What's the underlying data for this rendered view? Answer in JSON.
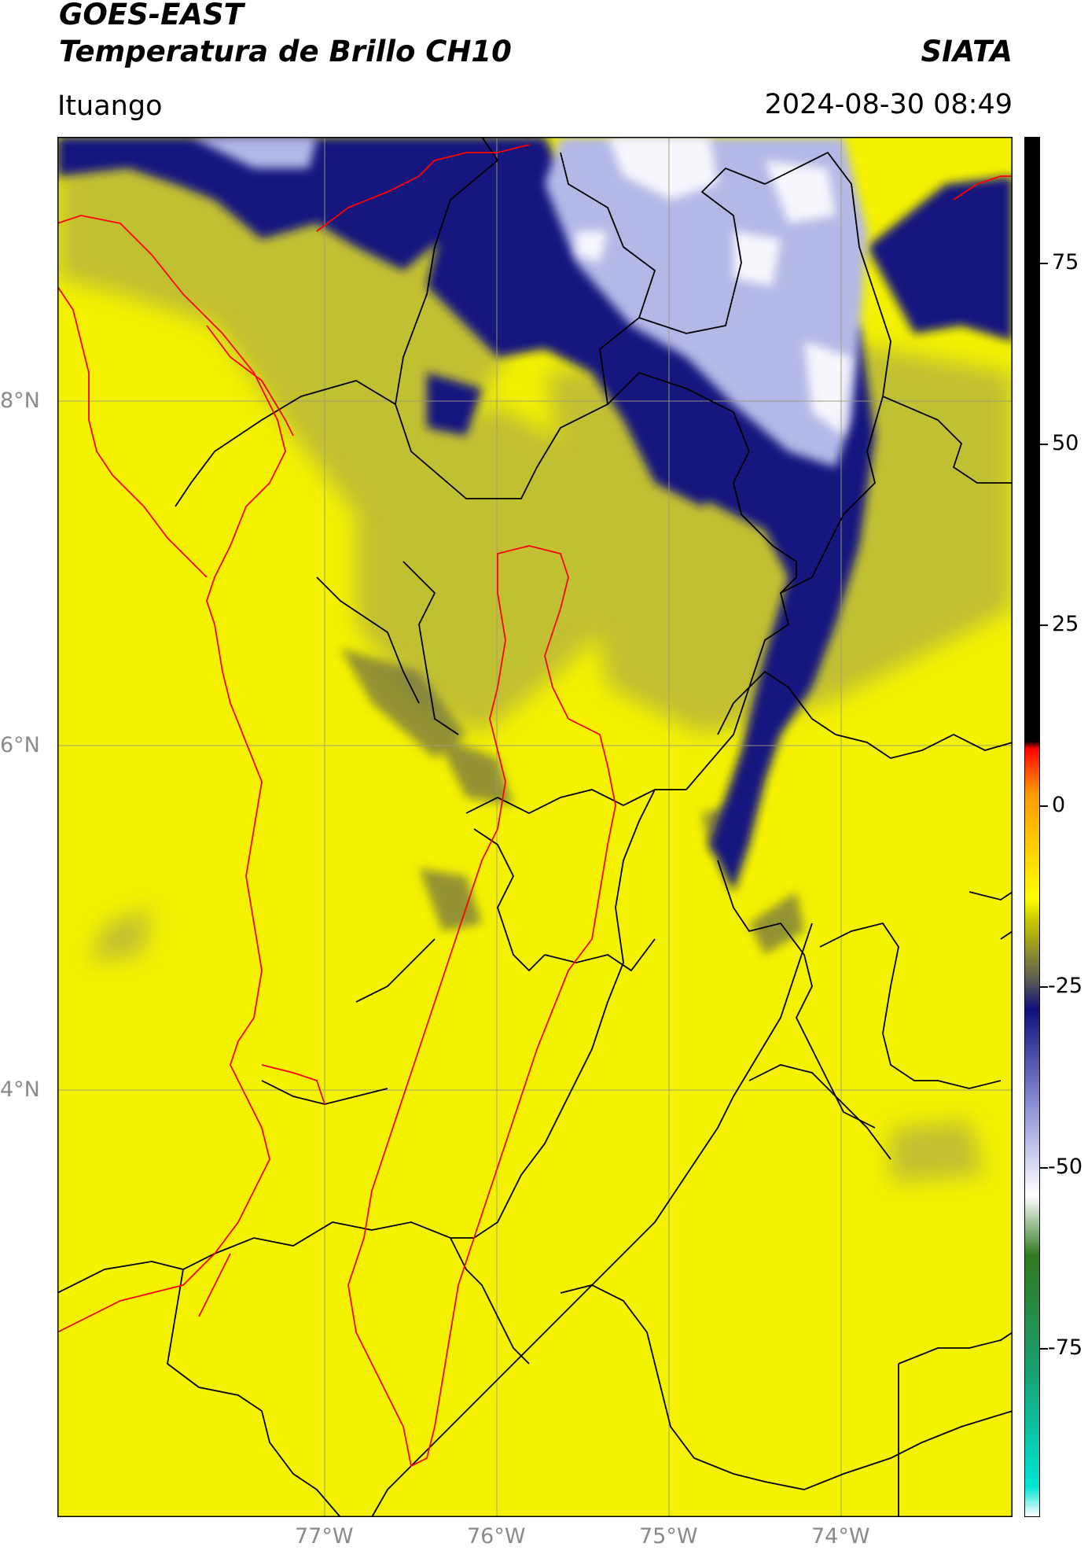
{
  "header": {
    "title_line1": "GOES-EAST",
    "title_line2": "Temperatura de Brillo CH10",
    "brand": "SIATA",
    "location": "Ituango",
    "timestamp": "2024-08-30 08:49"
  },
  "map": {
    "lat_labels": [
      "8°N",
      "6°N",
      "4°N"
    ],
    "lon_labels": [
      "77°W",
      "76°W",
      "75°W",
      "74°W"
    ],
    "colors": {
      "base_yellow": "#f4f200",
      "olive": "#b8b63a",
      "dark_olive": "#5e5e4a",
      "navy": "#15177f",
      "light_blue": "#b4b8e6",
      "white": "#f4f4fb",
      "boundary_black": "#000000",
      "boundary_red": "#ff0000",
      "grid": "#9a9a7a"
    }
  },
  "colorbar": {
    "labels": [
      "75",
      "50",
      "25",
      "0",
      "-25",
      "-50",
      "-75"
    ],
    "stops": [
      {
        "value": -95,
        "color": "#ffffff"
      },
      {
        "value": -91,
        "color": "#00e5d4"
      },
      {
        "value": -75,
        "color": "#1a9e6e"
      },
      {
        "value": -60,
        "color": "#2f7a1e"
      },
      {
        "value": -52,
        "color": "#ffffff"
      },
      {
        "value": -40,
        "color": "#8c92d6"
      },
      {
        "value": -27,
        "color": "#10107c"
      },
      {
        "value": -23,
        "color": "#5c5c54"
      },
      {
        "value": -15,
        "color": "#c9c800"
      },
      {
        "value": -12,
        "color": "#ffff00"
      },
      {
        "value": 2,
        "color": "#ff9a00"
      },
      {
        "value": 8,
        "color": "#ff0000"
      },
      {
        "value": 9,
        "color": "#000000"
      },
      {
        "value": 90,
        "color": "#000000"
      }
    ]
  }
}
